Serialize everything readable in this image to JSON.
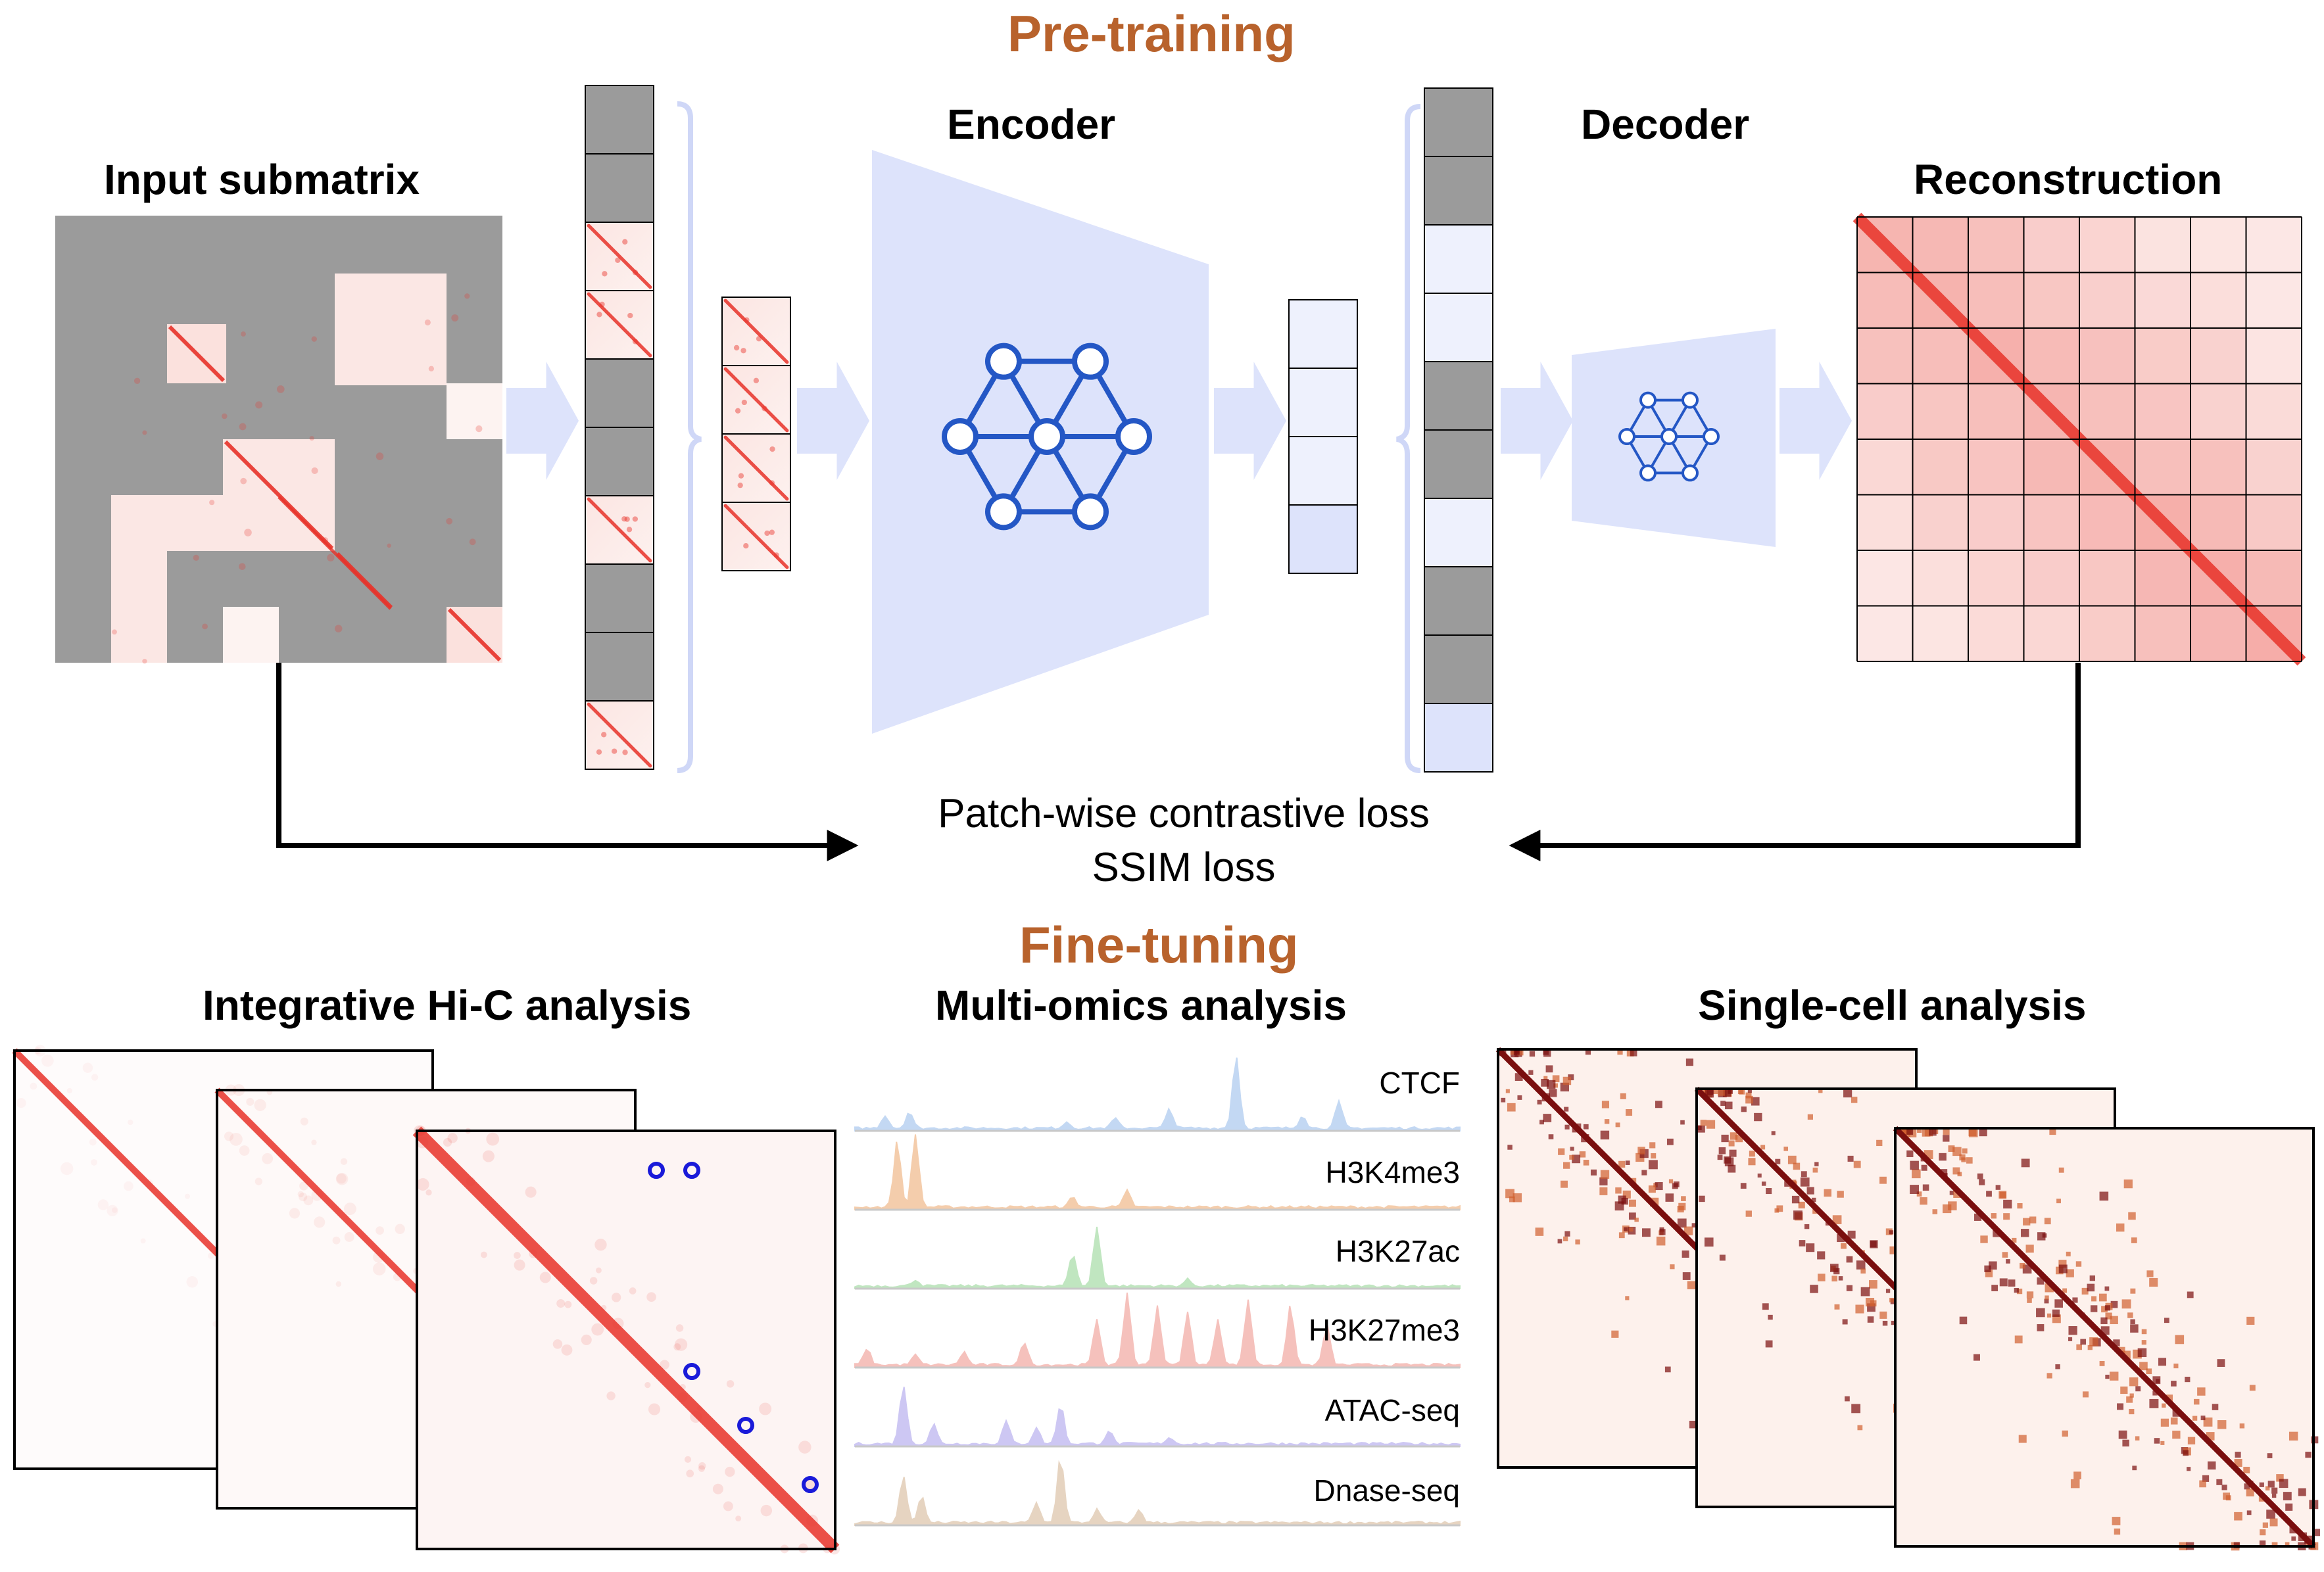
{
  "sections": {
    "pretraining": "Pre-training",
    "finetuning": "Fine-tuning"
  },
  "labels": {
    "input": "Input submatrix",
    "encoder": "Encoder",
    "decoder": "Decoder",
    "reconstruction": "Reconstruction",
    "loss1": "Patch-wise contrastive loss",
    "loss2": "SSIM loss"
  },
  "panels": {
    "hic": "Integrative Hi-C analysis",
    "multiomics": "Multi-omics analysis",
    "singlecell": "Single-cell analysis"
  },
  "tracks": [
    {
      "name": "CTCF",
      "color": "#aac8ee"
    },
    {
      "name": "H3K4me3",
      "color": "#f0b88a"
    },
    {
      "name": "H3K27ac",
      "color": "#a6dca6"
    },
    {
      "name": "H3K27me3",
      "color": "#f2a8a0"
    },
    {
      "name": "ATAC-seq",
      "color": "#b8b0ee"
    },
    {
      "name": "Dnase-seq",
      "color": "#dcc2a8"
    }
  ],
  "colors": {
    "accent": "#b8622c",
    "contact": "#e8332a",
    "mask": "#9b9b9b",
    "arrow": "#dde3fb",
    "network": "#2457c5",
    "singlecell": "#7a0e0e"
  }
}
